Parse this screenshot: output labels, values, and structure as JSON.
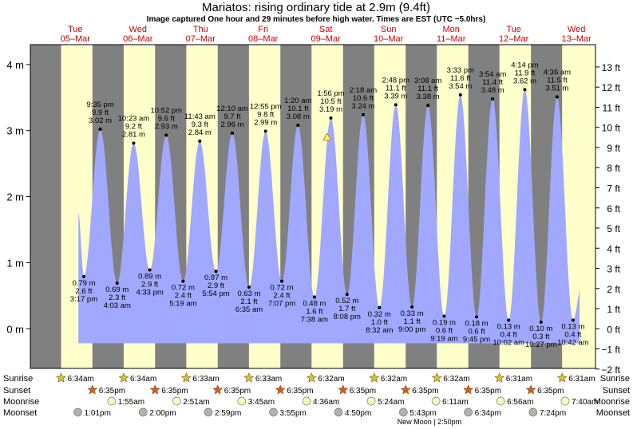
{
  "title": "Mariatos: rising  ordinary tide at 2.9m (9.4ft)",
  "subtitle": "Image captured One hour and 29 minutes before high water. Times are EST (UTC −5.0hrs)",
  "colors": {
    "day": "#ffffcc",
    "night": "#808080",
    "tide": "#a0a8ff",
    "date": "#cc0000",
    "frame": "#000000"
  },
  "days": [
    {
      "day": "Tue",
      "date": "05–Mar"
    },
    {
      "day": "Wed",
      "date": "06–Mar"
    },
    {
      "day": "Thu",
      "date": "07–Mar"
    },
    {
      "day": "Fri",
      "date": "08–Mar"
    },
    {
      "day": "Sat",
      "date": "09–Mar"
    },
    {
      "day": "Sun",
      "date": "10–Mar"
    },
    {
      "day": "Mon",
      "date": "11–Mar"
    },
    {
      "day": "Tue",
      "date": "12–Mar"
    },
    {
      "day": "Wed",
      "date": "13–Mar"
    }
  ],
  "chart_data": {
    "type": "area",
    "x_unit": "hours since 00:00 on Tue 05-Mar (EST)",
    "ylim_m": [
      -0.6,
      4.3
    ],
    "y_left_ticks": [
      "0 m",
      "1 m",
      "2 m",
      "3 m",
      "4 m"
    ],
    "y_left_values": [
      0,
      1,
      2,
      3,
      4
    ],
    "y_right_ticks": [
      "−2 ft",
      "−1 ft",
      "0 ft",
      "1 ft",
      "2 ft",
      "3 ft",
      "4 ft",
      "5 ft",
      "6 ft",
      "7 ft",
      "8 ft",
      "9 ft",
      "10 ft",
      "11 ft",
      "12 ft",
      "13 ft"
    ],
    "y_right_values_ft": [
      -2,
      -1,
      0,
      1,
      2,
      3,
      4,
      5,
      6,
      7,
      8,
      9,
      10,
      11,
      12,
      13
    ],
    "tides": [
      {
        "type": "low",
        "t": 15.28,
        "m": 0.79,
        "label": [
          "0.79 m",
          "2.6 ft",
          "3:17 pm"
        ]
      },
      {
        "type": "high",
        "t": 21.58,
        "m": 3.02,
        "label": [
          "9:35 pm",
          "9.9 ft",
          "3.02 m"
        ]
      },
      {
        "type": "low",
        "t": 28.05,
        "m": 0.69,
        "label": [
          "0.69 m",
          "2.3 ft",
          "4:03 am"
        ]
      },
      {
        "type": "high",
        "t": 34.38,
        "m": 2.81,
        "label": [
          "10:23 am",
          "9.2 ft",
          "2.81 m"
        ]
      },
      {
        "type": "low",
        "t": 40.55,
        "m": 0.89,
        "label": [
          "0.89 m",
          "2.9 ft",
          "4:33 pm"
        ]
      },
      {
        "type": "high",
        "t": 46.87,
        "m": 2.93,
        "label": [
          "10:52 pm",
          "9.6 ft",
          "2.93 m"
        ]
      },
      {
        "type": "low",
        "t": 53.32,
        "m": 0.72,
        "label": [
          "0.72 m",
          "2.4 ft",
          "5:19 am"
        ]
      },
      {
        "type": "high",
        "t": 59.72,
        "m": 2.84,
        "label": [
          "11:43 am",
          "9.3 ft",
          "2.84 m"
        ]
      },
      {
        "type": "low",
        "t": 65.9,
        "m": 0.87,
        "label": [
          "0.87 m",
          "2.9 ft",
          "5:54 pm"
        ]
      },
      {
        "type": "high",
        "t": 72.17,
        "m": 2.96,
        "label": [
          "12:10 am",
          "9.7 ft",
          "2.96 m"
        ]
      },
      {
        "type": "low",
        "t": 78.58,
        "m": 0.63,
        "label": [
          "0.63 m",
          "2.1 ft",
          "6:35 am"
        ]
      },
      {
        "type": "high",
        "t": 84.92,
        "m": 2.99,
        "label": [
          "12:55 pm",
          "9.8 ft",
          "2.99 m"
        ]
      },
      {
        "type": "low",
        "t": 91.12,
        "m": 0.72,
        "label": [
          "0.72 m",
          "2.4 ft",
          "7:07 pm"
        ]
      },
      {
        "type": "high",
        "t": 97.33,
        "m": 3.08,
        "label": [
          "1:20 am",
          "10.1 ft",
          "3.08 m"
        ]
      },
      {
        "type": "low",
        "t": 103.63,
        "m": 0.48,
        "label": [
          "0.48 m",
          "1.6 ft",
          "7:38 am"
        ]
      },
      {
        "type": "high",
        "t": 109.93,
        "m": 3.19,
        "label": [
          "1:56 pm",
          "10.5 ft",
          "3.19 m"
        ]
      },
      {
        "type": "low",
        "t": 116.13,
        "m": 0.52,
        "label": [
          "0.52 m",
          "1.7 ft",
          "8:08 pm"
        ]
      },
      {
        "type": "high",
        "t": 122.3,
        "m": 3.24,
        "label": [
          "2:18 am",
          "10.6 ft",
          "3.24 m"
        ]
      },
      {
        "type": "low",
        "t": 128.53,
        "m": 0.32,
        "label": [
          "0.32 m",
          "1.0 ft",
          "8:32 am"
        ]
      },
      {
        "type": "high",
        "t": 134.8,
        "m": 3.39,
        "label": [
          "2:48 pm",
          "11.1 ft",
          "3.39 m"
        ]
      },
      {
        "type": "low",
        "t": 141.0,
        "m": 0.33,
        "label": [
          "0.33 m",
          "1.1 ft",
          "9:00 pm"
        ]
      },
      {
        "type": "high",
        "t": 147.13,
        "m": 3.38,
        "label": [
          "3:08 am",
          "11.1 ft",
          "3.38 m"
        ]
      },
      {
        "type": "low",
        "t": 153.32,
        "m": 0.19,
        "label": [
          "0.19 m",
          "0.6 ft",
          "9:19 am"
        ]
      },
      {
        "type": "high",
        "t": 159.55,
        "m": 3.54,
        "label": [
          "3:33 pm",
          "11.6 ft",
          "3.54 m"
        ]
      },
      {
        "type": "low",
        "t": 165.75,
        "m": 0.18,
        "label": [
          "0.18 m",
          "0.6 ft",
          "9:45 pm"
        ]
      },
      {
        "type": "high",
        "t": 171.9,
        "m": 3.48,
        "label": [
          "3:54 am",
          "11.4 ft",
          "3.48 m"
        ]
      },
      {
        "type": "low",
        "t": 178.03,
        "m": 0.13,
        "label": [
          "0.13 m",
          "0.4 ft",
          "10:02 am"
        ]
      },
      {
        "type": "high",
        "t": 184.23,
        "m": 3.62,
        "label": [
          "4:14 pm",
          "11.9 ft",
          "3.62 m"
        ]
      },
      {
        "type": "low",
        "t": 190.45,
        "m": 0.1,
        "label": [
          "0.10 m",
          "0.3 ft",
          "10:27 pm"
        ]
      },
      {
        "type": "high",
        "t": 196.6,
        "m": 3.51,
        "label": [
          "4:36 am",
          "11.5 ft",
          "3.51 m"
        ]
      },
      {
        "type": "low",
        "t": 202.7,
        "m": 0.13,
        "label": [
          "0.13 m",
          "0.4 ft",
          "10:42 am"
        ]
      }
    ],
    "current": {
      "t": 108.45,
      "m": 2.9
    },
    "rows": {
      "sunrise": {
        "label": "Sunrise",
        "color": "#d4c43a",
        "events": [
          {
            "t": 6.57,
            "text": "6:34am"
          },
          {
            "t": 30.57,
            "text": "6:34am"
          },
          {
            "t": 54.55,
            "text": "6:33am"
          },
          {
            "t": 78.55,
            "text": "6:33am"
          },
          {
            "t": 102.53,
            "text": "6:32am"
          },
          {
            "t": 126.53,
            "text": "6:32am"
          },
          {
            "t": 150.53,
            "text": "6:32am"
          },
          {
            "t": 174.52,
            "text": "6:31am"
          },
          {
            "t": 198.52,
            "text": "6:31am"
          }
        ]
      },
      "sunset": {
        "label": "Sunset",
        "color": "#d85a2a",
        "events": [
          {
            "t": 18.58,
            "text": "6:35pm"
          },
          {
            "t": 42.58,
            "text": "6:35pm"
          },
          {
            "t": 66.58,
            "text": "6:35pm"
          },
          {
            "t": 90.58,
            "text": "6:35pm"
          },
          {
            "t": 114.58,
            "text": "6:35pm"
          },
          {
            "t": 138.58,
            "text": "6:35pm"
          },
          {
            "t": 162.58,
            "text": "6:35pm"
          },
          {
            "t": 186.58,
            "text": "6:35pm"
          }
        ]
      },
      "moonrise": {
        "label": "Moonrise",
        "color": "#fbf7c0",
        "events": [
          {
            "t": 25.92,
            "text": "1:55am"
          },
          {
            "t": 50.85,
            "text": "2:51am"
          },
          {
            "t": 75.75,
            "text": "3:45am"
          },
          {
            "t": 100.6,
            "text": "4:36am"
          },
          {
            "t": 125.4,
            "text": "5:24am"
          },
          {
            "t": 150.18,
            "text": "6:11am"
          },
          {
            "t": 174.93,
            "text": "6:56am"
          },
          {
            "t": 199.67,
            "text": "7:40am"
          }
        ]
      },
      "moonset": {
        "label": "Moonset",
        "color": "#b5b0a8",
        "events": [
          {
            "t": 13.02,
            "text": "1:01pm"
          },
          {
            "t": 38.0,
            "text": "2:00pm"
          },
          {
            "t": 62.98,
            "text": "2:59pm"
          },
          {
            "t": 87.92,
            "text": "3:55pm"
          },
          {
            "t": 112.83,
            "text": "4:50pm"
          },
          {
            "t": 137.72,
            "text": "5:43pm"
          },
          {
            "t": 162.57,
            "text": "6:34pm"
          },
          {
            "t": 187.4,
            "text": "7:24pm"
          }
        ]
      }
    },
    "moon_phase": {
      "t": 134.83,
      "text": "New Moon | 2:50pm"
    }
  }
}
